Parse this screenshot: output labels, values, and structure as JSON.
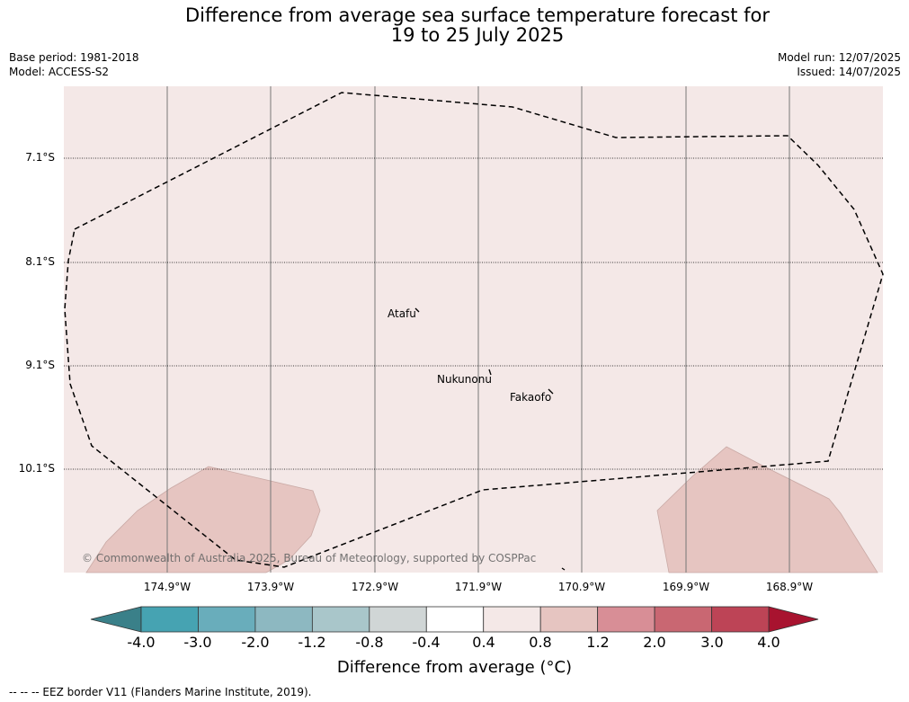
{
  "title_line1": "Difference from average sea surface temperature forecast for",
  "title_line2": "19 to 25 July 2025",
  "meta_left": {
    "base_period": "Base period: 1981-2018",
    "model": "Model: ACCESS-S2"
  },
  "meta_right": {
    "model_run": "Model run: 12/07/2025",
    "issued": "Issued: 14/07/2025"
  },
  "map": {
    "background_color": "#f4e8e7",
    "warm_patch_color": "#e6c5c1",
    "lat_labels": [
      "7.1°S",
      "8.1°S",
      "9.1°S",
      "10.1°S"
    ],
    "lon_labels": [
      "174.9°W",
      "173.9°W",
      "172.9°W",
      "171.9°W",
      "170.9°W",
      "169.9°W",
      "168.9°W"
    ],
    "places": [
      "Atafu",
      "Nukunonu",
      "Fakaofo"
    ],
    "copyright": "© Commonwealth of Australia 2025, Bureau of Meteorology, supported by COSPPac"
  },
  "colorbar": {
    "ticks": [
      "-4.0",
      "-3.0",
      "-2.0",
      "-1.2",
      "-0.8",
      "-0.4",
      "0.4",
      "0.8",
      "1.2",
      "2.0",
      "3.0",
      "4.0"
    ],
    "under_color": "#3a8089",
    "over_color": "#a8132f",
    "colors": [
      "#46a3b2",
      "#69adbb",
      "#8db8c1",
      "#a9c6ca",
      "#d0d6d6",
      "#ffffff",
      "#f4e8e7",
      "#e6c5c1",
      "#d88e96",
      "#c96772",
      "#bd4456"
    ],
    "label": "Difference from average (°C)"
  },
  "footer": "--  --  -- EEZ border V11 (Flanders Marine Institute, 2019)."
}
